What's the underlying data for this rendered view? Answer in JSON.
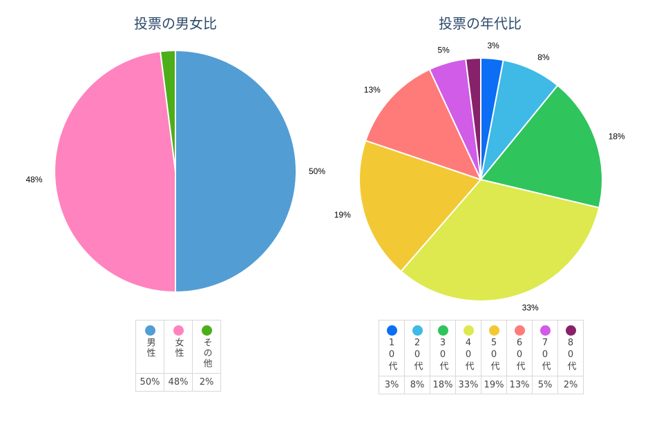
{
  "chart_data": [
    {
      "type": "pie",
      "title": "投票の男女比",
      "categories": [
        "男性",
        "女性",
        "その他"
      ],
      "values": [
        50,
        48,
        2
      ],
      "labels": [
        "50%",
        "48%",
        "2%"
      ],
      "slice_labels": [
        "50%",
        "48%",
        ""
      ],
      "colors": [
        "#529dd4",
        "#ff83bf",
        "#4caf1a"
      ],
      "legend": "bottom"
    },
    {
      "type": "pie",
      "title": "投票の年代比",
      "categories": [
        "10代",
        "20代",
        "30代",
        "40代",
        "50代",
        "60代",
        "70代",
        "80代"
      ],
      "values": [
        3,
        8,
        18,
        33,
        19,
        13,
        5,
        2
      ],
      "labels": [
        "3%",
        "8%",
        "18%",
        "33%",
        "19%",
        "13%",
        "5%",
        "2%"
      ],
      "slice_labels": [
        "3%",
        "8%",
        "18%",
        "33%",
        "19%",
        "13%",
        "5%",
        ""
      ],
      "colors": [
        "#0b6ef5",
        "#3fb9e6",
        "#2fc45c",
        "#dde94e",
        "#f2c934",
        "#fe7b79",
        "#d05ce8",
        "#87226a"
      ],
      "legend": "bottom"
    }
  ]
}
